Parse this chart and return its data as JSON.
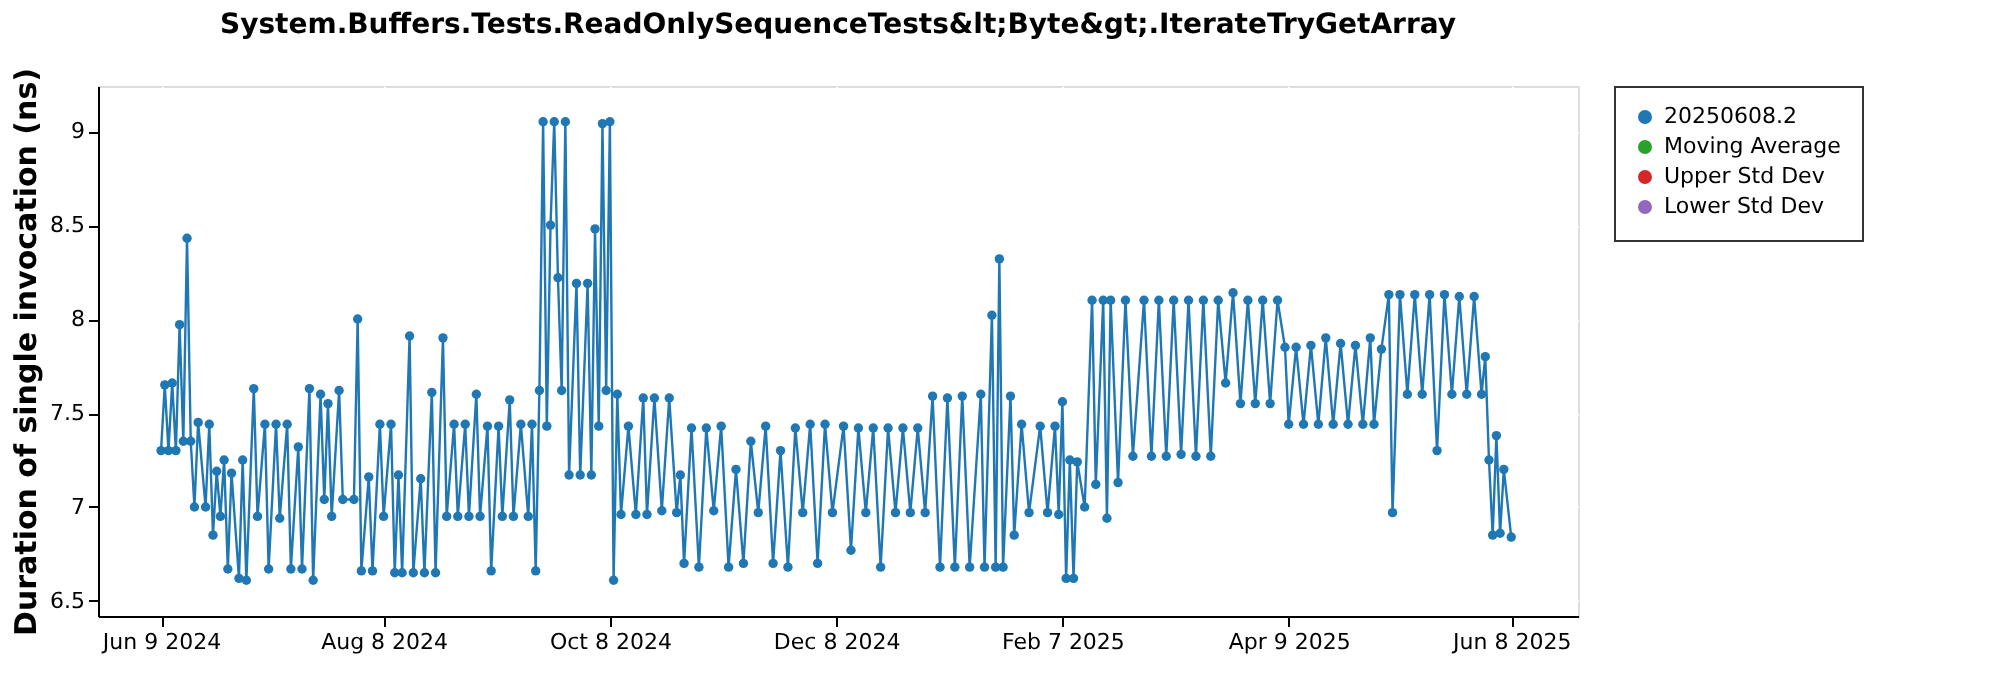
{
  "chart_data": {
    "type": "line",
    "title": "System.Buffers.Tests.ReadOnlySequenceTests&lt;Byte&gt;.IterateTryGetArray",
    "ylabel": "Duration of single invocation (ns)",
    "xlim": [
      "2024-05-23",
      "2025-06-26"
    ],
    "xticks": [
      {
        "value": "2024-06-09",
        "label": "Jun 9 2024"
      },
      {
        "value": "2024-08-08",
        "label": "Aug 8 2024"
      },
      {
        "value": "2024-10-08",
        "label": "Oct 8 2024"
      },
      {
        "value": "2024-12-08",
        "label": "Dec 8 2024"
      },
      {
        "value": "2025-02-07",
        "label": "Feb 7 2025"
      },
      {
        "value": "2025-04-09",
        "label": "Apr 9 2025"
      },
      {
        "value": "2025-06-08",
        "label": "Jun 8 2025"
      }
    ],
    "ylim": [
      6.42,
      9.24
    ],
    "yticks": [
      6.5,
      7,
      7.5,
      8,
      8.5,
      9
    ],
    "grid": true,
    "legend": "right",
    "marker": "circle",
    "line_style": "solid",
    "series": [
      {
        "name": "20250608.2",
        "color": "#1f77b4",
        "x": [
          "2024-06-09",
          "2024-06-10",
          "2024-06-11",
          "2024-06-12",
          "2024-06-13",
          "2024-06-14",
          "2024-06-15",
          "2024-06-16",
          "2024-06-17",
          "2024-06-18",
          "2024-06-19",
          "2024-06-21",
          "2024-06-22",
          "2024-06-23",
          "2024-06-24",
          "2024-06-25",
          "2024-06-26",
          "2024-06-27",
          "2024-06-28",
          "2024-06-30",
          "2024-07-01",
          "2024-07-02",
          "2024-07-04",
          "2024-07-05",
          "2024-07-07",
          "2024-07-08",
          "2024-07-10",
          "2024-07-11",
          "2024-07-13",
          "2024-07-14",
          "2024-07-16",
          "2024-07-17",
          "2024-07-19",
          "2024-07-20",
          "2024-07-22",
          "2024-07-23",
          "2024-07-24",
          "2024-07-25",
          "2024-07-27",
          "2024-07-28",
          "2024-07-31",
          "2024-08-01",
          "2024-08-02",
          "2024-08-04",
          "2024-08-05",
          "2024-08-07",
          "2024-08-08",
          "2024-08-10",
          "2024-08-11",
          "2024-08-12",
          "2024-08-13",
          "2024-08-15",
          "2024-08-16",
          "2024-08-18",
          "2024-08-19",
          "2024-08-21",
          "2024-08-22",
          "2024-08-24",
          "2024-08-25",
          "2024-08-27",
          "2024-08-28",
          "2024-08-30",
          "2024-08-31",
          "2024-09-02",
          "2024-09-03",
          "2024-09-05",
          "2024-09-06",
          "2024-09-08",
          "2024-09-09",
          "2024-09-11",
          "2024-09-12",
          "2024-09-14",
          "2024-09-16",
          "2024-09-17",
          "2024-09-18",
          "2024-09-19",
          "2024-09-20",
          "2024-09-21",
          "2024-09-22",
          "2024-09-23",
          "2024-09-24",
          "2024-09-25",
          "2024-09-26",
          "2024-09-27",
          "2024-09-29",
          "2024-09-30",
          "2024-10-02",
          "2024-10-03",
          "2024-10-04",
          "2024-10-05",
          "2024-10-06",
          "2024-10-07",
          "2024-10-08",
          "2024-10-09",
          "2024-10-10",
          "2024-10-11",
          "2024-10-13",
          "2024-10-15",
          "2024-10-17",
          "2024-10-18",
          "2024-10-20",
          "2024-10-22",
          "2024-10-24",
          "2024-10-26",
          "2024-10-27",
          "2024-10-28",
          "2024-10-30",
          "2024-11-01",
          "2024-11-03",
          "2024-11-05",
          "2024-11-07",
          "2024-11-09",
          "2024-11-11",
          "2024-11-13",
          "2024-11-15",
          "2024-11-17",
          "2024-11-19",
          "2024-11-21",
          "2024-11-23",
          "2024-11-25",
          "2024-11-27",
          "2024-11-29",
          "2024-12-01",
          "2024-12-03",
          "2024-12-05",
          "2024-12-07",
          "2024-12-10",
          "2024-12-12",
          "2024-12-14",
          "2024-12-16",
          "2024-12-18",
          "2024-12-20",
          "2024-12-22",
          "2024-12-24",
          "2024-12-26",
          "2024-12-28",
          "2024-12-30",
          "2025-01-01",
          "2025-01-03",
          "2025-01-05",
          "2025-01-07",
          "2025-01-09",
          "2025-01-11",
          "2025-01-13",
          "2025-01-16",
          "2025-01-17",
          "2025-01-19",
          "2025-01-20",
          "2025-01-21",
          "2025-01-22",
          "2025-01-24",
          "2025-01-25",
          "2025-01-27",
          "2025-01-29",
          "2025-02-01",
          "2025-02-03",
          "2025-02-05",
          "2025-02-06",
          "2025-02-07",
          "2025-02-08",
          "2025-02-09",
          "2025-02-10",
          "2025-02-11",
          "2025-02-13",
          "2025-02-15",
          "2025-02-16",
          "2025-02-18",
          "2025-02-19",
          "2025-02-20",
          "2025-02-22",
          "2025-02-24",
          "2025-02-26",
          "2025-03-01",
          "2025-03-03",
          "2025-03-05",
          "2025-03-07",
          "2025-03-09",
          "2025-03-11",
          "2025-03-13",
          "2025-03-15",
          "2025-03-17",
          "2025-03-19",
          "2025-03-21",
          "2025-03-23",
          "2025-03-25",
          "2025-03-27",
          "2025-03-29",
          "2025-03-31",
          "2025-04-02",
          "2025-04-04",
          "2025-04-06",
          "2025-04-08",
          "2025-04-09",
          "2025-04-11",
          "2025-04-13",
          "2025-04-15",
          "2025-04-17",
          "2025-04-19",
          "2025-04-21",
          "2025-04-23",
          "2025-04-25",
          "2025-04-27",
          "2025-04-29",
          "2025-05-01",
          "2025-05-02",
          "2025-05-04",
          "2025-05-06",
          "2025-05-07",
          "2025-05-09",
          "2025-05-11",
          "2025-05-13",
          "2025-05-15",
          "2025-05-17",
          "2025-05-19",
          "2025-05-21",
          "2025-05-23",
          "2025-05-25",
          "2025-05-27",
          "2025-05-29",
          "2025-05-31",
          "2025-06-01",
          "2025-06-02",
          "2025-06-03",
          "2025-06-04",
          "2025-06-05",
          "2025-06-06",
          "2025-06-08"
        ],
        "values": [
          7.3,
          7.65,
          7.3,
          7.66,
          7.3,
          7.97,
          7.35,
          8.43,
          7.35,
          7.0,
          7.45,
          7.0,
          7.44,
          6.85,
          7.19,
          6.95,
          7.25,
          6.67,
          7.18,
          6.62,
          7.25,
          6.61,
          7.63,
          6.95,
          7.44,
          6.67,
          7.44,
          6.94,
          7.44,
          6.67,
          7.32,
          6.67,
          7.63,
          6.61,
          7.6,
          7.04,
          7.55,
          6.95,
          7.62,
          7.04,
          7.04,
          8.0,
          6.66,
          7.16,
          6.66,
          7.44,
          6.95,
          7.44,
          6.65,
          7.17,
          6.65,
          7.91,
          6.65,
          7.15,
          6.65,
          7.61,
          6.65,
          7.9,
          6.95,
          7.44,
          6.95,
          7.44,
          6.95,
          7.6,
          6.95,
          7.43,
          6.66,
          7.43,
          6.95,
          7.57,
          6.95,
          7.44,
          6.95,
          7.44,
          6.66,
          7.62,
          9.05,
          7.43,
          8.5,
          9.05,
          8.22,
          7.62,
          9.05,
          7.17,
          8.19,
          7.17,
          8.19,
          7.17,
          8.48,
          7.43,
          9.04,
          7.62,
          9.05,
          6.61,
          7.6,
          6.96,
          7.43,
          6.96,
          7.58,
          6.96,
          7.58,
          6.98,
          7.58,
          6.97,
          7.17,
          6.7,
          7.42,
          6.68,
          7.42,
          6.98,
          7.43,
          6.68,
          7.2,
          6.7,
          7.35,
          6.97,
          7.43,
          6.7,
          7.3,
          6.68,
          7.42,
          6.97,
          7.44,
          6.7,
          7.44,
          6.97,
          7.43,
          6.77,
          7.42,
          6.97,
          7.42,
          6.68,
          7.42,
          6.97,
          7.42,
          6.97,
          7.42,
          6.97,
          7.59,
          6.68,
          7.58,
          6.68,
          7.59,
          6.68,
          7.6,
          6.68,
          8.02,
          6.68,
          8.32,
          6.68,
          7.59,
          6.85,
          7.44,
          6.97,
          7.43,
          6.97,
          7.43,
          6.96,
          7.56,
          6.62,
          7.25,
          6.62,
          7.24,
          7.0,
          8.1,
          7.12,
          8.1,
          6.94,
          8.1,
          7.13,
          8.1,
          7.27,
          8.1,
          7.27,
          8.1,
          7.27,
          8.1,
          7.28,
          8.1,
          7.27,
          8.1,
          7.27,
          8.1,
          7.66,
          8.14,
          7.55,
          8.1,
          7.55,
          8.1,
          7.55,
          8.1,
          7.85,
          7.44,
          7.85,
          7.44,
          7.86,
          7.44,
          7.9,
          7.44,
          7.87,
          7.44,
          7.86,
          7.44,
          7.9,
          7.44,
          7.84,
          8.13,
          6.97,
          8.13,
          7.6,
          8.13,
          7.6,
          8.13,
          7.3,
          8.13,
          7.6,
          8.12,
          7.6,
          8.12,
          7.6,
          7.8,
          7.25,
          6.85,
          7.38,
          6.86,
          7.2,
          6.84
        ]
      },
      {
        "name": "Moving Average",
        "color": "#2ca02c"
      },
      {
        "name": "Upper Std Dev",
        "color": "#d62728"
      },
      {
        "name": "Lower Std Dev",
        "color": "#9467bd"
      }
    ]
  }
}
